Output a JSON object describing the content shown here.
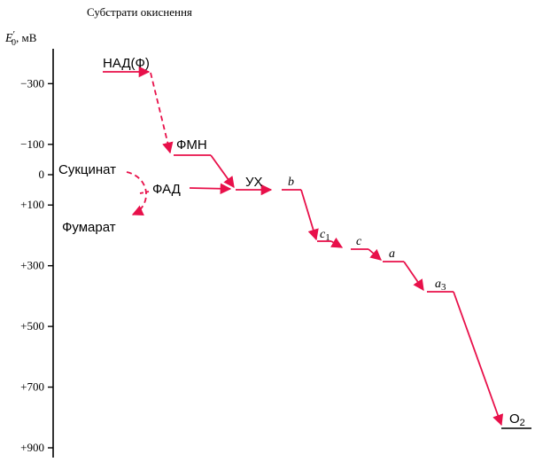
{
  "title": "Субстрати окиснення",
  "axis": {
    "label_symbol": "E",
    "label_sup": "′",
    "label_sub": "0",
    "label_unit": ",  мВ",
    "ticks": [
      {
        "value": -300,
        "label": "−300"
      },
      {
        "value": -100,
        "label": "−100"
      },
      {
        "value": 0,
        "label": "0"
      },
      {
        "value": 100,
        "label": "+100"
      },
      {
        "value": 300,
        "label": "+300"
      },
      {
        "value": 500,
        "label": "+500"
      },
      {
        "value": 700,
        "label": "+700"
      },
      {
        "value": 900,
        "label": "+900"
      }
    ]
  },
  "carriers": [
    {
      "id": "nad",
      "label": "НАД(Ф)",
      "sub": "",
      "italic": false,
      "potential_mv": -340
    },
    {
      "id": "fmn",
      "label": "ФМН",
      "sub": "",
      "italic": false,
      "potential_mv": -120
    },
    {
      "id": "q",
      "label": "УХ",
      "sub": "",
      "italic": false,
      "potential_mv": 50
    },
    {
      "id": "b",
      "label": "b",
      "sub": "",
      "italic": true,
      "potential_mv": 50
    },
    {
      "id": "c1",
      "label": "c",
      "sub": "1",
      "italic": true,
      "potential_mv": 220
    },
    {
      "id": "c",
      "label": "c",
      "sub": "",
      "italic": true,
      "potential_mv": 250
    },
    {
      "id": "a",
      "label": "a",
      "sub": "",
      "italic": true,
      "potential_mv": 290
    },
    {
      "id": "a3",
      "label": "a",
      "sub": "3",
      "italic": true,
      "potential_mv": 385
    },
    {
      "id": "o2",
      "label": "O",
      "sub": "2",
      "italic": false,
      "potential_mv": 820
    }
  ],
  "substrates": {
    "succinate": "Сукцинат",
    "fumarate": "Фумарат",
    "fad": "ФАД"
  },
  "colors": {
    "arrow": "#e8104a",
    "axis": "#000000",
    "o2_level": "#000000"
  }
}
